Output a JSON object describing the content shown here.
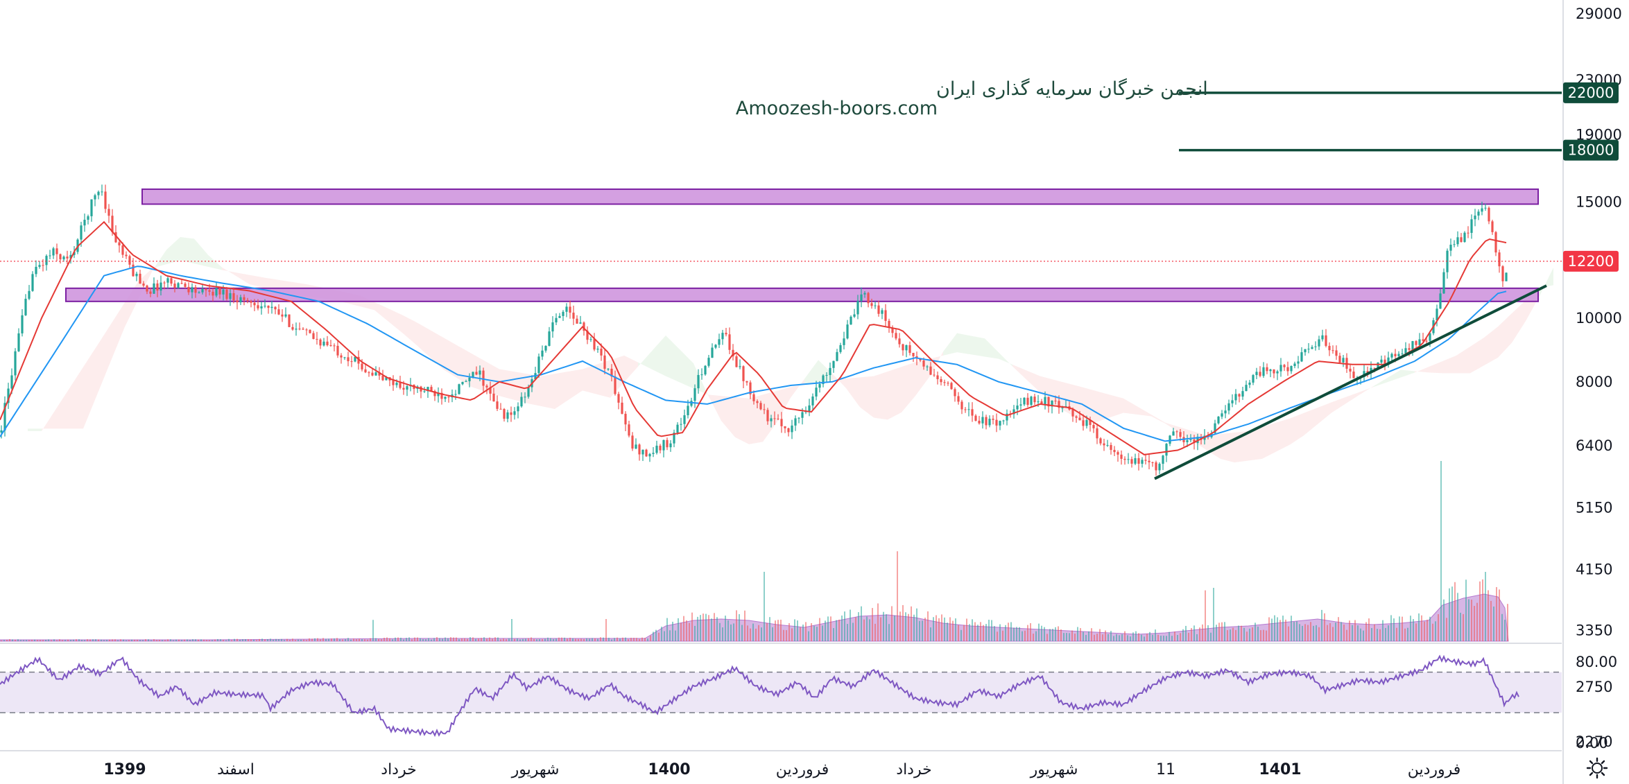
{
  "watermark": {
    "line1": "انجمن خبرگان سرمایه گذاری ایران",
    "line2": "Amoozesh-boors.com"
  },
  "colors": {
    "up": "#26a69a",
    "down": "#ef5350",
    "zone_fill": "#cc8fdc",
    "zone_stroke": "#7b1fa2",
    "target_line": "#0f4c3a",
    "trend_line": "#0f4c3a",
    "ma_fast": "#e53935",
    "ma_slow": "#2196f3",
    "volume": "#b67ad0",
    "rsi_line": "#7e57c2",
    "rsi_band": "#ede7f6",
    "current_price": "#f23645"
  },
  "chart_data": {
    "type": "candlestick",
    "y_axis": {
      "scale": "log",
      "ticks": [
        "29000",
        "23000",
        "19000",
        "15000",
        "10000",
        "8000",
        "6400",
        "5150",
        "4150",
        "3350",
        "2750",
        "2270"
      ]
    },
    "x_axis": {
      "ticks": [
        {
          "label": "1399",
          "bold": true
        },
        {
          "label": "اسفند",
          "bold": false
        },
        {
          "label": "خرداد",
          "bold": false
        },
        {
          "label": "شهریور",
          "bold": false
        },
        {
          "label": "1400",
          "bold": true
        },
        {
          "label": "فروردین",
          "bold": false
        },
        {
          "label": "خرداد",
          "bold": false
        },
        {
          "label": "شهریور",
          "bold": false
        },
        {
          "label": "11",
          "bold": false
        },
        {
          "label": "1401",
          "bold": true
        },
        {
          "label": "فروردین",
          "bold": false
        }
      ]
    },
    "price_path": [
      [
        0,
        6700
      ],
      [
        20,
        8600
      ],
      [
        45,
        11600
      ],
      [
        75,
        12600
      ],
      [
        100,
        12200
      ],
      [
        130,
        14800
      ],
      [
        145,
        15900
      ],
      [
        165,
        13200
      ],
      [
        190,
        11800
      ],
      [
        215,
        11000
      ],
      [
        240,
        11400
      ],
      [
        265,
        11200
      ],
      [
        290,
        10900
      ],
      [
        315,
        11000
      ],
      [
        345,
        10700
      ],
      [
        375,
        10500
      ],
      [
        405,
        10100
      ],
      [
        430,
        9600
      ],
      [
        455,
        9300
      ],
      [
        480,
        9000
      ],
      [
        505,
        8700
      ],
      [
        525,
        8400
      ],
      [
        550,
        8100
      ],
      [
        575,
        7900
      ],
      [
        600,
        7800
      ],
      [
        625,
        7700
      ],
      [
        640,
        7650
      ],
      [
        660,
        7800
      ],
      [
        690,
        8300
      ],
      [
        715,
        7300
      ],
      [
        735,
        7050
      ],
      [
        760,
        7700
      ],
      [
        785,
        9100
      ],
      [
        810,
        10400
      ],
      [
        835,
        9800
      ],
      [
        860,
        9000
      ],
      [
        880,
        8200
      ],
      [
        910,
        6400
      ],
      [
        935,
        6200
      ],
      [
        965,
        6500
      ],
      [
        990,
        7200
      ],
      [
        1015,
        8500
      ],
      [
        1045,
        9500
      ],
      [
        1065,
        8400
      ],
      [
        1090,
        7500
      ],
      [
        1110,
        7000
      ],
      [
        1140,
        6800
      ],
      [
        1165,
        7400
      ],
      [
        1190,
        8200
      ],
      [
        1215,
        9300
      ],
      [
        1245,
        10900
      ],
      [
        1270,
        10200
      ],
      [
        1295,
        9200
      ],
      [
        1320,
        8700
      ],
      [
        1345,
        8200
      ],
      [
        1370,
        7800
      ],
      [
        1400,
        7100
      ],
      [
        1430,
        6900
      ],
      [
        1455,
        7100
      ],
      [
        1480,
        7500
      ],
      [
        1505,
        7500
      ],
      [
        1530,
        7300
      ],
      [
        1560,
        7000
      ],
      [
        1585,
        6600
      ],
      [
        1605,
        6200
      ],
      [
        1630,
        6000
      ],
      [
        1655,
        6100
      ],
      [
        1670,
        5900
      ],
      [
        1690,
        6700
      ],
      [
        1715,
        6500
      ],
      [
        1740,
        6600
      ],
      [
        1765,
        7200
      ],
      [
        1790,
        7800
      ],
      [
        1815,
        8300
      ],
      [
        1840,
        8300
      ],
      [
        1865,
        8500
      ],
      [
        1890,
        9000
      ],
      [
        1905,
        9300
      ],
      [
        1925,
        8900
      ],
      [
        1950,
        8200
      ],
      [
        1975,
        8300
      ],
      [
        2000,
        8600
      ],
      [
        2025,
        8900
      ],
      [
        2045,
        9200
      ],
      [
        2060,
        9400
      ],
      [
        2075,
        10400
      ],
      [
        2085,
        12500
      ],
      [
        2100,
        13000
      ],
      [
        2120,
        13800
      ],
      [
        2140,
        14900
      ],
      [
        2150,
        13800
      ],
      [
        2160,
        12400
      ],
      [
        2168,
        11400
      ],
      [
        2175,
        12200
      ]
    ],
    "ma_fast_path": [
      [
        0,
        7000
      ],
      [
        60,
        10000
      ],
      [
        110,
        12800
      ],
      [
        150,
        14000
      ],
      [
        190,
        12500
      ],
      [
        240,
        11600
      ],
      [
        300,
        11200
      ],
      [
        360,
        11000
      ],
      [
        420,
        10600
      ],
      [
        470,
        9600
      ],
      [
        520,
        8600
      ],
      [
        560,
        8100
      ],
      [
        600,
        7850
      ],
      [
        640,
        7650
      ],
      [
        680,
        7500
      ],
      [
        720,
        8000
      ],
      [
        760,
        7800
      ],
      [
        800,
        8700
      ],
      [
        840,
        9700
      ],
      [
        880,
        8800
      ],
      [
        915,
        7300
      ],
      [
        950,
        6600
      ],
      [
        985,
        6700
      ],
      [
        1020,
        7800
      ],
      [
        1060,
        8900
      ],
      [
        1095,
        8200
      ],
      [
        1130,
        7300
      ],
      [
        1170,
        7200
      ],
      [
        1215,
        8200
      ],
      [
        1255,
        9800
      ],
      [
        1300,
        9600
      ],
      [
        1345,
        8600
      ],
      [
        1400,
        7600
      ],
      [
        1450,
        7100
      ],
      [
        1500,
        7400
      ],
      [
        1545,
        7300
      ],
      [
        1600,
        6700
      ],
      [
        1650,
        6200
      ],
      [
        1700,
        6300
      ],
      [
        1750,
        6700
      ],
      [
        1800,
        7400
      ],
      [
        1850,
        8000
      ],
      [
        1900,
        8600
      ],
      [
        1950,
        8500
      ],
      [
        2000,
        8500
      ],
      [
        2050,
        9100
      ],
      [
        2090,
        10600
      ],
      [
        2120,
        12300
      ],
      [
        2145,
        13200
      ],
      [
        2175,
        13000
      ]
    ],
    "ma_slow_path": [
      [
        0,
        6600
      ],
      [
        80,
        8900
      ],
      [
        150,
        11600
      ],
      [
        200,
        12000
      ],
      [
        260,
        11600
      ],
      [
        320,
        11300
      ],
      [
        390,
        11000
      ],
      [
        460,
        10600
      ],
      [
        530,
        9800
      ],
      [
        600,
        8900
      ],
      [
        660,
        8200
      ],
      [
        720,
        8000
      ],
      [
        780,
        8200
      ],
      [
        840,
        8600
      ],
      [
        900,
        8000
      ],
      [
        960,
        7500
      ],
      [
        1020,
        7400
      ],
      [
        1080,
        7700
      ],
      [
        1140,
        7900
      ],
      [
        1200,
        8000
      ],
      [
        1260,
        8400
      ],
      [
        1320,
        8700
      ],
      [
        1380,
        8500
      ],
      [
        1440,
        8000
      ],
      [
        1500,
        7700
      ],
      [
        1560,
        7400
      ],
      [
        1620,
        6800
      ],
      [
        1680,
        6500
      ],
      [
        1740,
        6600
      ],
      [
        1800,
        6900
      ],
      [
        1860,
        7300
      ],
      [
        1920,
        7700
      ],
      [
        1980,
        8100
      ],
      [
        2040,
        8600
      ],
      [
        2090,
        9300
      ],
      [
        2130,
        10200
      ],
      [
        2160,
        10900
      ],
      [
        2175,
        11000
      ]
    ],
    "zones": [
      {
        "low": 14900,
        "high": 15700,
        "x_start": 205,
        "x_end": 2218
      },
      {
        "low": 10600,
        "high": 11100,
        "x_start": 95,
        "x_end": 2218
      }
    ],
    "target_levels": [
      {
        "price": 22000,
        "label": "22000"
      },
      {
        "price": 18000,
        "label": "18000"
      }
    ],
    "trend_line": {
      "p1": [
        1665,
        5700
      ],
      "p2": [
        2230,
        11200
      ]
    },
    "current_price": {
      "value": 12200,
      "label": "12200"
    },
    "volume_path": [
      [
        0,
        2
      ],
      [
        300,
        2
      ],
      [
        600,
        4
      ],
      [
        930,
        4
      ],
      [
        960,
        22
      ],
      [
        1000,
        30
      ],
      [
        1040,
        32
      ],
      [
        1080,
        30
      ],
      [
        1120,
        24
      ],
      [
        1160,
        20
      ],
      [
        1200,
        28
      ],
      [
        1240,
        36
      ],
      [
        1280,
        38
      ],
      [
        1320,
        34
      ],
      [
        1360,
        26
      ],
      [
        1400,
        22
      ],
      [
        1440,
        20
      ],
      [
        1480,
        18
      ],
      [
        1520,
        16
      ],
      [
        1560,
        14
      ],
      [
        1600,
        12
      ],
      [
        1640,
        10
      ],
      [
        1680,
        12
      ],
      [
        1720,
        16
      ],
      [
        1760,
        20
      ],
      [
        1800,
        22
      ],
      [
        1840,
        26
      ],
      [
        1880,
        30
      ],
      [
        1900,
        32
      ],
      [
        1940,
        26
      ],
      [
        1980,
        24
      ],
      [
        2020,
        26
      ],
      [
        2060,
        30
      ],
      [
        2080,
        52
      ],
      [
        2110,
        62
      ],
      [
        2140,
        68
      ],
      [
        2160,
        64
      ],
      [
        2175,
        40
      ]
    ],
    "rsi": {
      "upper": 70,
      "lower": 30,
      "ticks": [
        "80.00",
        "0.00"
      ],
      "path": [
        [
          0,
          58
        ],
        [
          25,
          70
        ],
        [
          55,
          83
        ],
        [
          85,
          62
        ],
        [
          115,
          76
        ],
        [
          145,
          68
        ],
        [
          175,
          84
        ],
        [
          200,
          62
        ],
        [
          230,
          46
        ],
        [
          255,
          56
        ],
        [
          280,
          38
        ],
        [
          310,
          50
        ],
        [
          340,
          48
        ],
        [
          380,
          47
        ],
        [
          390,
          34
        ],
        [
          420,
          52
        ],
        [
          450,
          60
        ],
        [
          480,
          58
        ],
        [
          510,
          30
        ],
        [
          540,
          34
        ],
        [
          560,
          14
        ],
        [
          590,
          12
        ],
        [
          620,
          10
        ],
        [
          645,
          10
        ],
        [
          660,
          28
        ],
        [
          685,
          54
        ],
        [
          710,
          44
        ],
        [
          740,
          68
        ],
        [
          760,
          54
        ],
        [
          790,
          66
        ],
        [
          820,
          52
        ],
        [
          850,
          44
        ],
        [
          880,
          58
        ],
        [
          900,
          46
        ],
        [
          925,
          38
        ],
        [
          945,
          30
        ],
        [
          970,
          42
        ],
        [
          1000,
          56
        ],
        [
          1030,
          64
        ],
        [
          1060,
          74
        ],
        [
          1090,
          56
        ],
        [
          1120,
          48
        ],
        [
          1150,
          60
        ],
        [
          1175,
          44
        ],
        [
          1200,
          64
        ],
        [
          1230,
          56
        ],
        [
          1260,
          72
        ],
        [
          1290,
          58
        ],
        [
          1320,
          44
        ],
        [
          1350,
          40
        ],
        [
          1380,
          38
        ],
        [
          1410,
          52
        ],
        [
          1440,
          46
        ],
        [
          1470,
          58
        ],
        [
          1500,
          66
        ],
        [
          1530,
          40
        ],
        [
          1560,
          34
        ],
        [
          1590,
          40
        ],
        [
          1620,
          38
        ],
        [
          1650,
          52
        ],
        [
          1680,
          64
        ],
        [
          1710,
          70
        ],
        [
          1740,
          66
        ],
        [
          1770,
          72
        ],
        [
          1800,
          60
        ],
        [
          1830,
          68
        ],
        [
          1860,
          70
        ],
        [
          1890,
          66
        ],
        [
          1910,
          52
        ],
        [
          1930,
          56
        ],
        [
          1960,
          62
        ],
        [
          1990,
          60
        ],
        [
          2020,
          66
        ],
        [
          2050,
          72
        ],
        [
          2075,
          84
        ],
        [
          2100,
          80
        ],
        [
          2125,
          78
        ],
        [
          2140,
          82
        ],
        [
          2160,
          52
        ],
        [
          2170,
          38
        ],
        [
          2180,
          46
        ],
        [
          2190,
          48
        ]
      ]
    }
  }
}
